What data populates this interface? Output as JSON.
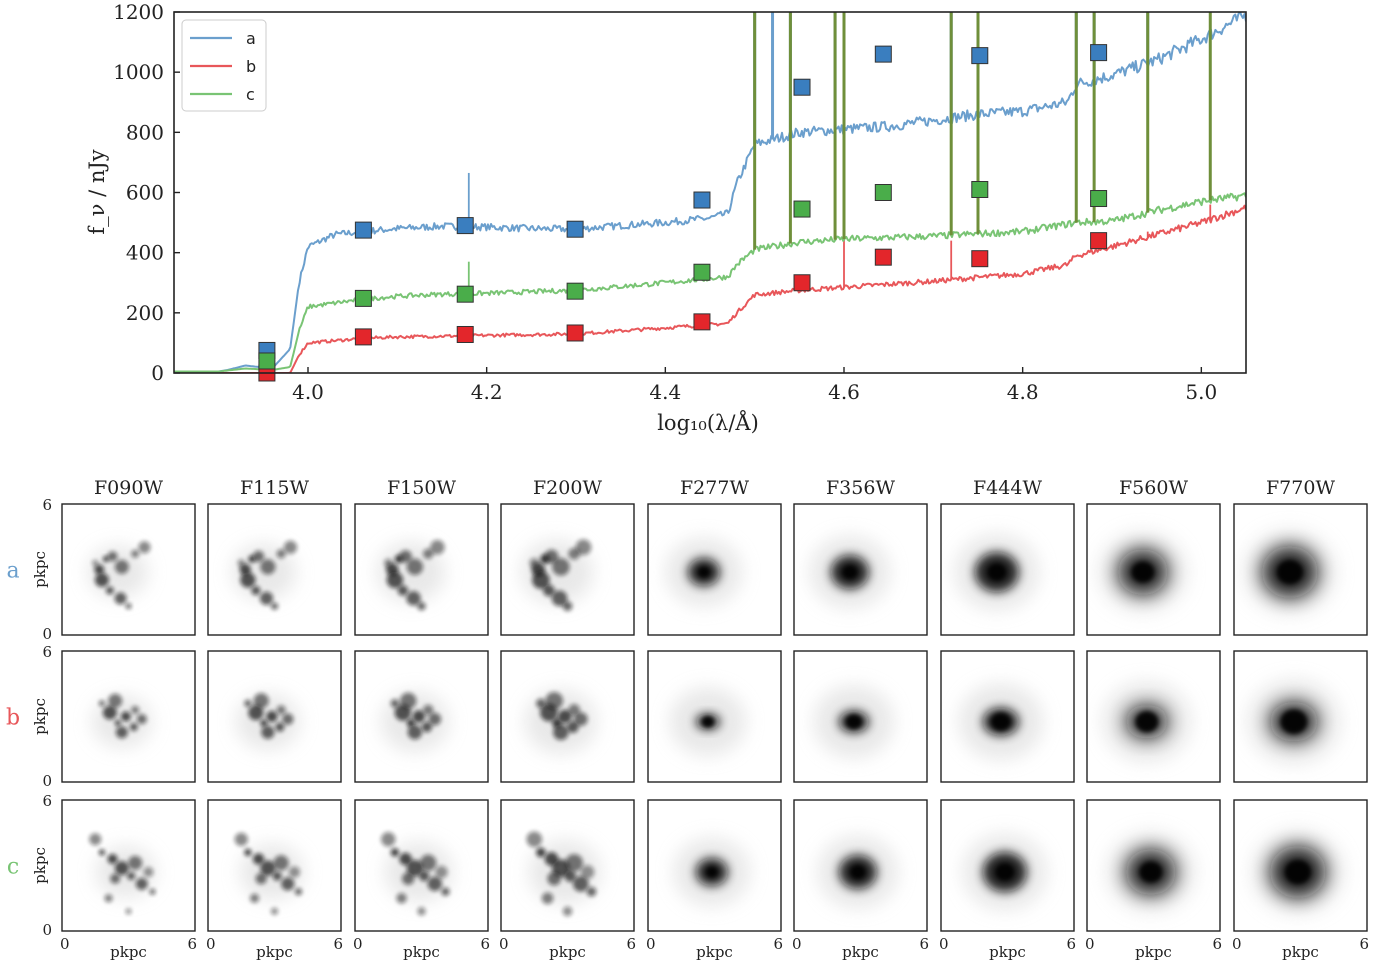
{
  "colors": {
    "a": "#6b9fcd",
    "b": "#e8575a",
    "c": "#79c474",
    "a_marker": "#3a7ebf",
    "b_marker": "#e3262b",
    "c_marker": "#4aad4a"
  },
  "spectrum_panel": {
    "ylabel": "f_ν / nJy",
    "xlabel": "log₁₀(λ/Å)"
  },
  "images_panel": {
    "filters": [
      "F090W",
      "F115W",
      "F150W",
      "F200W",
      "F277W",
      "F356W",
      "F444W",
      "F560W",
      "F770W"
    ],
    "row_labels": [
      "a",
      "b",
      "c"
    ],
    "axis_label": "pkpc",
    "axis_range": [
      0,
      6
    ]
  },
  "chart_data": [
    {
      "type": "line",
      "title": "",
      "xlabel": "log₁₀(λ/Å)",
      "ylabel": "f_ν / nJy",
      "xlim": [
        3.85,
        5.05
      ],
      "ylim": [
        0,
        1200
      ],
      "xticks": [
        4.0,
        4.2,
        4.4,
        4.6,
        4.8,
        5.0
      ],
      "yticks": [
        0,
        200,
        400,
        600,
        800,
        1000,
        1200
      ],
      "legend": "top-left",
      "grid": false,
      "series": [
        {
          "name": "a",
          "color": "#6b9fcd",
          "x": [
            3.85,
            3.9,
            3.91,
            3.93,
            3.96,
            3.98,
            3.99,
            4.0,
            4.03,
            4.06,
            4.1,
            4.15,
            4.2,
            4.25,
            4.3,
            4.35,
            4.4,
            4.45,
            4.47,
            4.48,
            4.5,
            4.55,
            4.6,
            4.65,
            4.7,
            4.75,
            4.8,
            4.85,
            4.86,
            4.9,
            4.95,
            5.0,
            5.05
          ],
          "y": [
            5,
            5,
            10,
            25,
            15,
            80,
            300,
            420,
            460,
            470,
            480,
            488,
            485,
            480,
            478,
            490,
            500,
            515,
            530,
            630,
            760,
            800,
            810,
            820,
            840,
            860,
            870,
            900,
            960,
            990,
            1040,
            1110,
            1190
          ],
          "lines": [
            [
              4.18,
              665
            ],
            [
              4.5,
              1200
            ],
            [
              4.52,
              1200
            ],
            [
              4.54,
              1200
            ],
            [
              4.59,
              1200
            ],
            [
              4.6,
              1200
            ],
            [
              4.72,
              1200
            ],
            [
              4.75,
              1200
            ],
            [
              4.86,
              1200
            ],
            [
              4.88,
              1200
            ],
            [
              4.94,
              1200
            ]
          ]
        },
        {
          "name": "b",
          "color": "#e8575a",
          "x": [
            3.85,
            3.9,
            3.95,
            3.98,
            3.99,
            4.0,
            4.06,
            4.1,
            4.2,
            4.3,
            4.4,
            4.47,
            4.48,
            4.5,
            4.55,
            4.6,
            4.7,
            4.8,
            4.85,
            4.86,
            4.9,
            4.95,
            5.0,
            5.05
          ],
          "y": [
            0,
            0,
            0,
            0,
            60,
            100,
            115,
            120,
            125,
            130,
            150,
            165,
            200,
            260,
            275,
            285,
            305,
            330,
            360,
            390,
            420,
            460,
            500,
            550
          ],
          "lines": [
            [
              4.6,
              490
            ],
            [
              4.72,
              440
            ],
            [
              4.86,
              390
            ],
            [
              4.94,
              470
            ],
            [
              5.01,
              560
            ]
          ]
        },
        {
          "name": "c",
          "color": "#79c474",
          "x": [
            3.85,
            3.9,
            3.93,
            3.96,
            3.98,
            3.99,
            4.0,
            4.06,
            4.1,
            4.15,
            4.2,
            4.3,
            4.4,
            4.47,
            4.48,
            4.5,
            4.55,
            4.6,
            4.7,
            4.8,
            4.86,
            4.9,
            4.95,
            5.0,
            5.05
          ],
          "y": [
            5,
            5,
            15,
            10,
            20,
            140,
            220,
            245,
            255,
            262,
            265,
            275,
            300,
            320,
            360,
            410,
            435,
            445,
            455,
            470,
            500,
            505,
            540,
            570,
            590
          ],
          "lines": [
            [
              4.18,
              370
            ],
            [
              4.5,
              1200
            ],
            [
              4.54,
              1200
            ],
            [
              4.59,
              1200
            ],
            [
              4.6,
              1200
            ],
            [
              4.72,
              1200
            ],
            [
              4.75,
              1200
            ],
            [
              4.86,
              1200
            ],
            [
              4.88,
              1200
            ],
            [
              4.94,
              1200
            ],
            [
              5.01,
              1200
            ]
          ]
        }
      ],
      "photometry": [
        {
          "name": "a",
          "color": "#3a7ebf",
          "x": [
            3.954,
            4.062,
            4.176,
            4.299,
            4.441,
            4.553,
            4.644,
            4.752,
            4.885
          ],
          "y": [
            75,
            475,
            490,
            478,
            575,
            950,
            1060,
            1055,
            1065
          ]
        },
        {
          "name": "b",
          "color": "#e3262b",
          "x": [
            3.954,
            4.062,
            4.176,
            4.299,
            4.441,
            4.553,
            4.644,
            4.752,
            4.885
          ],
          "y": [
            0,
            120,
            128,
            133,
            170,
            300,
            385,
            380,
            440
          ]
        },
        {
          "name": "c",
          "color": "#4aad4a",
          "x": [
            3.954,
            4.062,
            4.176,
            4.299,
            4.441,
            4.553,
            4.644,
            4.752,
            4.885
          ],
          "y": [
            40,
            248,
            262,
            272,
            335,
            545,
            600,
            610,
            580
          ]
        }
      ]
    },
    {
      "type": "heatmap",
      "title": "",
      "columns": [
        "F090W",
        "F115W",
        "F150W",
        "F200W",
        "F277W",
        "F356W",
        "F444W",
        "F560W",
        "F770W"
      ],
      "rows": [
        "a",
        "b",
        "c"
      ],
      "xlabel": "pkpc",
      "ylabel": "pkpc",
      "xlim": [
        0,
        6
      ],
      "ylim": [
        0,
        6
      ],
      "xticks": [
        0,
        6
      ],
      "yticks": [
        0,
        6
      ]
    }
  ]
}
